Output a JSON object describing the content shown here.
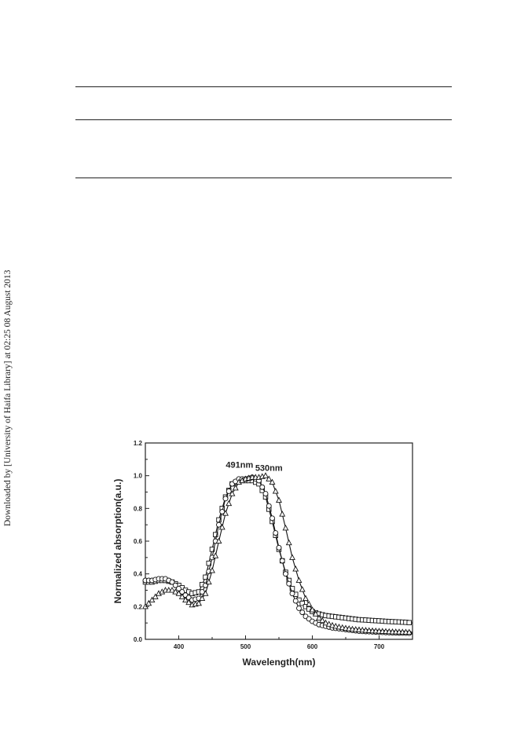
{
  "sidebar_text": "Downloaded by [University of Haifa Library] at 02:25 08 August 2013",
  "chart_data": {
    "type": "line",
    "title": "",
    "xlabel": "Wavelength(nm)",
    "ylabel": "Normalized absorption(a.u.)",
    "xlim": [
      350,
      750
    ],
    "ylim": [
      0.0,
      1.2
    ],
    "xticks": [
      400,
      500,
      600,
      700
    ],
    "yticks": [
      0.0,
      0.2,
      0.4,
      0.6,
      0.8,
      1.0,
      1.2
    ],
    "xtick_labels": [
      "400",
      "500",
      "600",
      "700"
    ],
    "ytick_labels": [
      "0.0",
      "0.2",
      "0.4",
      "0.6",
      "0.8",
      "1.0",
      "1.2"
    ],
    "grid": false,
    "annotations": [
      {
        "text": "491nm",
        "x": 491,
        "y": 1.05
      },
      {
        "text": "530nm",
        "x": 535,
        "y": 1.03
      }
    ],
    "series": [
      {
        "marker": "square",
        "x": [
          350,
          360,
          370,
          380,
          390,
          400,
          410,
          420,
          430,
          440,
          450,
          460,
          470,
          480,
          490,
          500,
          510,
          520,
          530,
          540,
          550,
          560,
          570,
          580,
          590,
          600,
          610,
          620,
          630,
          640,
          650,
          660,
          670,
          680,
          690,
          700,
          710,
          720,
          730,
          740,
          750
        ],
        "y": [
          0.35,
          0.35,
          0.36,
          0.36,
          0.35,
          0.33,
          0.3,
          0.28,
          0.29,
          0.38,
          0.55,
          0.73,
          0.87,
          0.95,
          0.97,
          0.97,
          0.97,
          0.95,
          0.87,
          0.72,
          0.55,
          0.41,
          0.31,
          0.24,
          0.2,
          0.17,
          0.155,
          0.145,
          0.14,
          0.135,
          0.13,
          0.125,
          0.12,
          0.118,
          0.115,
          0.113,
          0.11,
          0.108,
          0.106,
          0.104,
          0.1
        ]
      },
      {
        "marker": "circle",
        "x": [
          350,
          360,
          370,
          380,
          390,
          400,
          410,
          420,
          430,
          440,
          450,
          460,
          470,
          480,
          490,
          500,
          510,
          520,
          530,
          540,
          550,
          560,
          570,
          580,
          590,
          600,
          610,
          620,
          630,
          640,
          650,
          660,
          670,
          680,
          690,
          700,
          710,
          720,
          730,
          740,
          750
        ],
        "y": [
          0.36,
          0.36,
          0.37,
          0.37,
          0.35,
          0.31,
          0.27,
          0.24,
          0.25,
          0.33,
          0.5,
          0.7,
          0.86,
          0.95,
          0.98,
          0.98,
          0.99,
          0.97,
          0.89,
          0.74,
          0.56,
          0.4,
          0.28,
          0.19,
          0.14,
          0.11,
          0.09,
          0.08,
          0.07,
          0.065,
          0.06,
          0.055,
          0.05,
          0.048,
          0.046,
          0.044,
          0.042,
          0.04,
          0.039,
          0.038,
          0.037
        ]
      },
      {
        "marker": "triangle",
        "x": [
          350,
          360,
          370,
          380,
          390,
          400,
          410,
          420,
          430,
          440,
          450,
          460,
          470,
          480,
          490,
          500,
          510,
          520,
          530,
          540,
          550,
          560,
          570,
          580,
          590,
          600,
          610,
          620,
          630,
          640,
          650,
          660,
          670,
          680,
          690,
          700,
          710,
          720,
          730,
          740,
          750
        ],
        "y": [
          0.2,
          0.24,
          0.28,
          0.3,
          0.3,
          0.28,
          0.24,
          0.21,
          0.22,
          0.28,
          0.42,
          0.6,
          0.77,
          0.89,
          0.96,
          0.98,
          0.99,
          0.99,
          1.0,
          0.96,
          0.85,
          0.68,
          0.5,
          0.36,
          0.25,
          0.18,
          0.13,
          0.1,
          0.085,
          0.075,
          0.068,
          0.062,
          0.058,
          0.055,
          0.052,
          0.05,
          0.048,
          0.046,
          0.045,
          0.044,
          0.043
        ]
      }
    ]
  }
}
